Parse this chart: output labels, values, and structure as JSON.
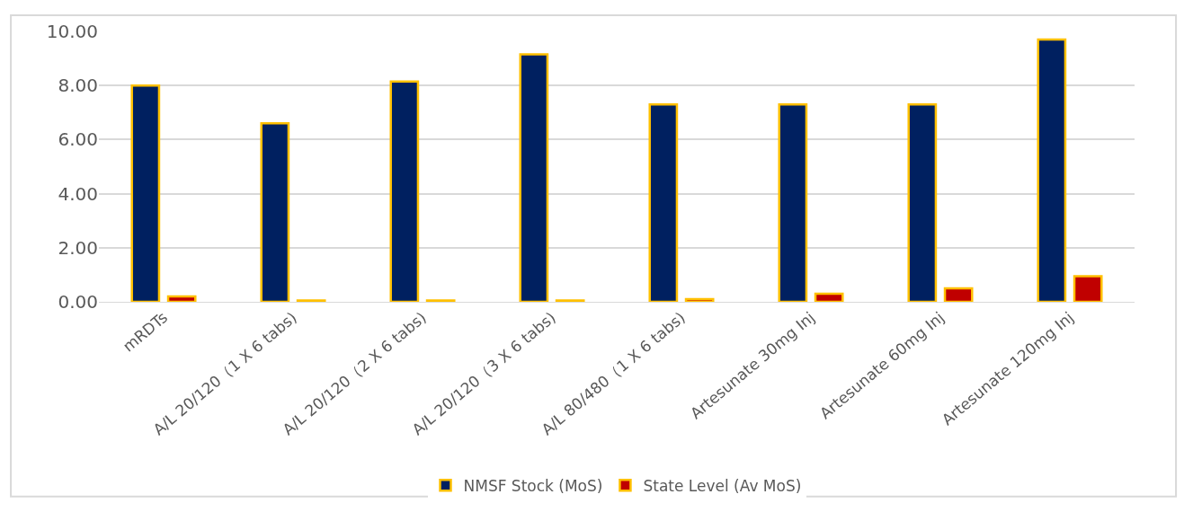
{
  "chart_data": {
    "type": "bar",
    "categories": [
      "mRDTs",
      "A/L 20/120（1 X 6 tabs)",
      "A/L 20/120（2 X 6 tabs)",
      "A/L 20/120（3 X 6 tabs)",
      "A/L 80/480（1 X 6 tabs)",
      "Artesunate 30mg Inj",
      "Artesunate 60mg Inj",
      "Artesunate 120mg Inj"
    ],
    "series": [
      {
        "name": "NMSF Stock (MoS)",
        "color": "#002060",
        "values": [
          8.0,
          6.6,
          8.15,
          9.15,
          7.3,
          7.3,
          7.3,
          9.7
        ]
      },
      {
        "name": "State Level (Av MoS)",
        "color": "#c00000",
        "values": [
          0.2,
          0.05,
          0.05,
          0.05,
          0.1,
          0.3,
          0.5,
          0.95
        ]
      }
    ],
    "ylim": [
      0,
      10
    ],
    "yticks": [
      {
        "value": 0,
        "label": "0.00"
      },
      {
        "value": 2,
        "label": "2.00"
      },
      {
        "value": 4,
        "label": "4.00"
      },
      {
        "value": 6,
        "label": "6.00"
      },
      {
        "value": 8,
        "label": "8.00"
      },
      {
        "value": 10,
        "label": "10.00"
      }
    ],
    "grid": "y",
    "legend": "bottom"
  }
}
